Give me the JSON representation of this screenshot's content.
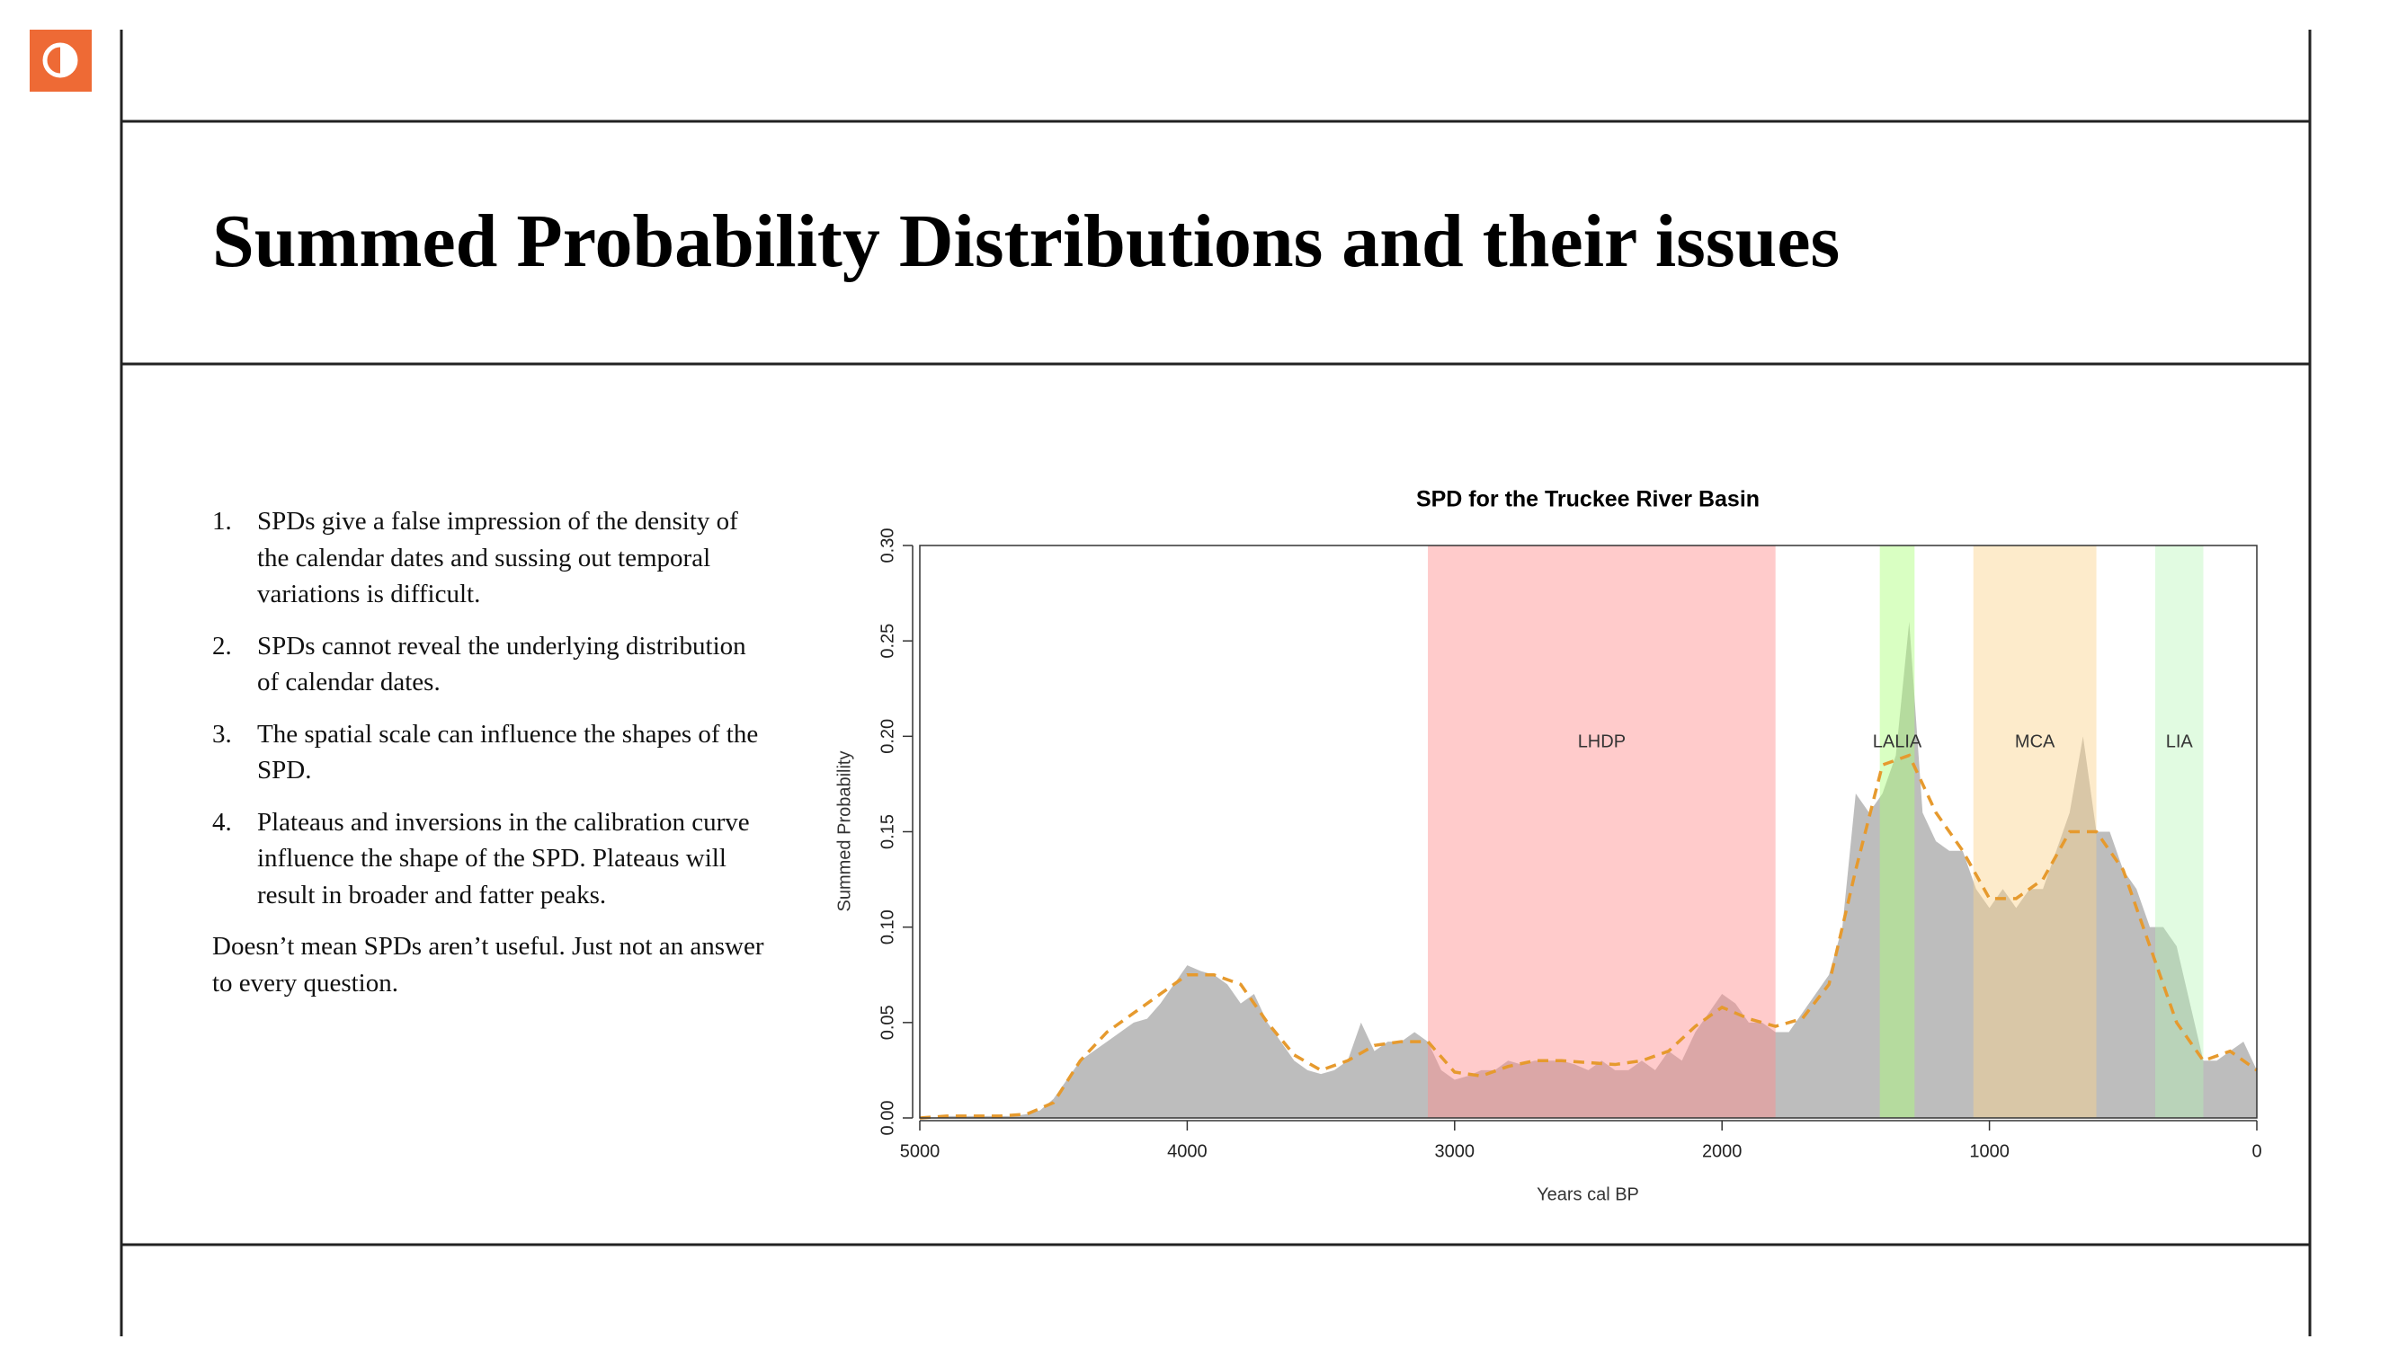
{
  "slide": {
    "title": "Summed Probability Distributions and their issues",
    "items": [
      {
        "number": "1.",
        "text": "SPDs give a false impression of the density of the calendar dates and sussing out temporal variations is difficult."
      },
      {
        "number": "2.",
        "text": "SPDs cannot reveal the underlying distribution of calendar dates."
      },
      {
        "number": "3.",
        "text": "The spatial scale can influence the shapes of the SPD."
      },
      {
        "number": "4.",
        "text": "Plateaus and inversions in the calibration curve influence the shape of the SPD. Plateaus will result in broader and fatter peaks."
      }
    ],
    "note": "Doesn’t mean SPDs aren’t useful. Just not an answer to every question."
  },
  "chart_data": {
    "type": "area",
    "title": "SPD for the Truckee River Basin",
    "x_label": "Years cal BP",
    "y_label": "Summed Probability",
    "xlim": [
      5000,
      0
    ],
    "ylim": [
      0,
      0.3
    ],
    "xticks": [
      5000,
      4000,
      3000,
      2000,
      1000,
      0
    ],
    "yticks": [
      {
        "value": 0,
        "label": "0.00"
      },
      0.05,
      {
        "value": 0.1,
        "label": "0.10"
      },
      0.15,
      {
        "value": 0.2,
        "label": "0.20"
      },
      0.25,
      {
        "value": 0.3,
        "label": "0.30"
      }
    ],
    "periods": [
      {
        "label": "LHDP",
        "start": 3100,
        "end": 1800,
        "color": "rgba(255,140,140,0.45)"
      },
      {
        "label": "LALIA",
        "start": 1410,
        "end": 1280,
        "color": "rgba(170,255,120,0.45)"
      },
      {
        "label": "MCA",
        "start": 1060,
        "end": 600,
        "color": "rgba(250,210,140,0.45)"
      },
      {
        "label": "LIA",
        "start": 380,
        "end": 200,
        "color": "rgba(180,245,180,0.4)"
      }
    ],
    "series": [
      {
        "kind": "area",
        "color": "#bdbdbd",
        "x": [
          5000,
          4950,
          4900,
          4850,
          4800,
          4750,
          4700,
          4650,
          4600,
          4550,
          4500,
          4450,
          4400,
          4350,
          4300,
          4250,
          4200,
          4150,
          4100,
          4050,
          4000,
          3950,
          3900,
          3850,
          3800,
          3750,
          3700,
          3650,
          3600,
          3550,
          3500,
          3450,
          3400,
          3350,
          3300,
          3250,
          3200,
          3150,
          3100,
          3050,
          3000,
          2950,
          2900,
          2850,
          2800,
          2750,
          2700,
          2650,
          2600,
          2550,
          2500,
          2450,
          2400,
          2350,
          2300,
          2250,
          2200,
          2150,
          2100,
          2050,
          2000,
          1950,
          1900,
          1850,
          1800,
          1750,
          1700,
          1650,
          1600,
          1550,
          1500,
          1450,
          1400,
          1350,
          1300,
          1250,
          1200,
          1150,
          1100,
          1050,
          1000,
          950,
          900,
          850,
          800,
          750,
          700,
          650,
          600,
          550,
          500,
          450,
          400,
          350,
          300,
          250,
          200,
          150,
          100,
          50,
          0
        ],
        "values": [
          0,
          0,
          0.001,
          0.001,
          0.001,
          0.001,
          0.001,
          0.001,
          0.002,
          0.004,
          0.01,
          0.02,
          0.03,
          0.035,
          0.04,
          0.045,
          0.05,
          0.052,
          0.06,
          0.07,
          0.08,
          0.077,
          0.075,
          0.07,
          0.06,
          0.065,
          0.05,
          0.04,
          0.03,
          0.025,
          0.023,
          0.025,
          0.03,
          0.05,
          0.035,
          0.04,
          0.04,
          0.045,
          0.04,
          0.025,
          0.02,
          0.022,
          0.025,
          0.025,
          0.03,
          0.028,
          0.03,
          0.03,
          0.03,
          0.028,
          0.025,
          0.03,
          0.025,
          0.025,
          0.03,
          0.025,
          0.035,
          0.03,
          0.045,
          0.055,
          0.065,
          0.06,
          0.05,
          0.05,
          0.045,
          0.045,
          0.055,
          0.065,
          0.075,
          0.1,
          0.17,
          0.16,
          0.17,
          0.19,
          0.26,
          0.16,
          0.145,
          0.14,
          0.14,
          0.12,
          0.11,
          0.12,
          0.11,
          0.12,
          0.12,
          0.14,
          0.16,
          0.2,
          0.15,
          0.15,
          0.13,
          0.12,
          0.1,
          0.1,
          0.09,
          0.06,
          0.03,
          0.03,
          0.035,
          0.04,
          0.025
        ]
      },
      {
        "kind": "line",
        "color": "#e69a2e",
        "x": [
          5000,
          4900,
          4800,
          4700,
          4600,
          4500,
          4400,
          4300,
          4200,
          4100,
          4000,
          3900,
          3800,
          3700,
          3600,
          3500,
          3400,
          3300,
          3200,
          3100,
          3000,
          2900,
          2800,
          2700,
          2600,
          2500,
          2400,
          2300,
          2200,
          2100,
          2000,
          1900,
          1800,
          1700,
          1600,
          1500,
          1400,
          1300,
          1200,
          1100,
          1000,
          900,
          800,
          700,
          600,
          500,
          400,
          300,
          200,
          100,
          0
        ],
        "values": [
          0,
          0.001,
          0.001,
          0.001,
          0.002,
          0.008,
          0.03,
          0.045,
          0.055,
          0.065,
          0.075,
          0.075,
          0.07,
          0.05,
          0.033,
          0.025,
          0.03,
          0.038,
          0.04,
          0.04,
          0.024,
          0.022,
          0.027,
          0.03,
          0.03,
          0.029,
          0.028,
          0.03,
          0.035,
          0.048,
          0.058,
          0.052,
          0.048,
          0.052,
          0.07,
          0.13,
          0.185,
          0.19,
          0.16,
          0.14,
          0.115,
          0.115,
          0.125,
          0.15,
          0.15,
          0.13,
          0.09,
          0.05,
          0.03,
          0.035,
          0.025
        ]
      }
    ]
  }
}
